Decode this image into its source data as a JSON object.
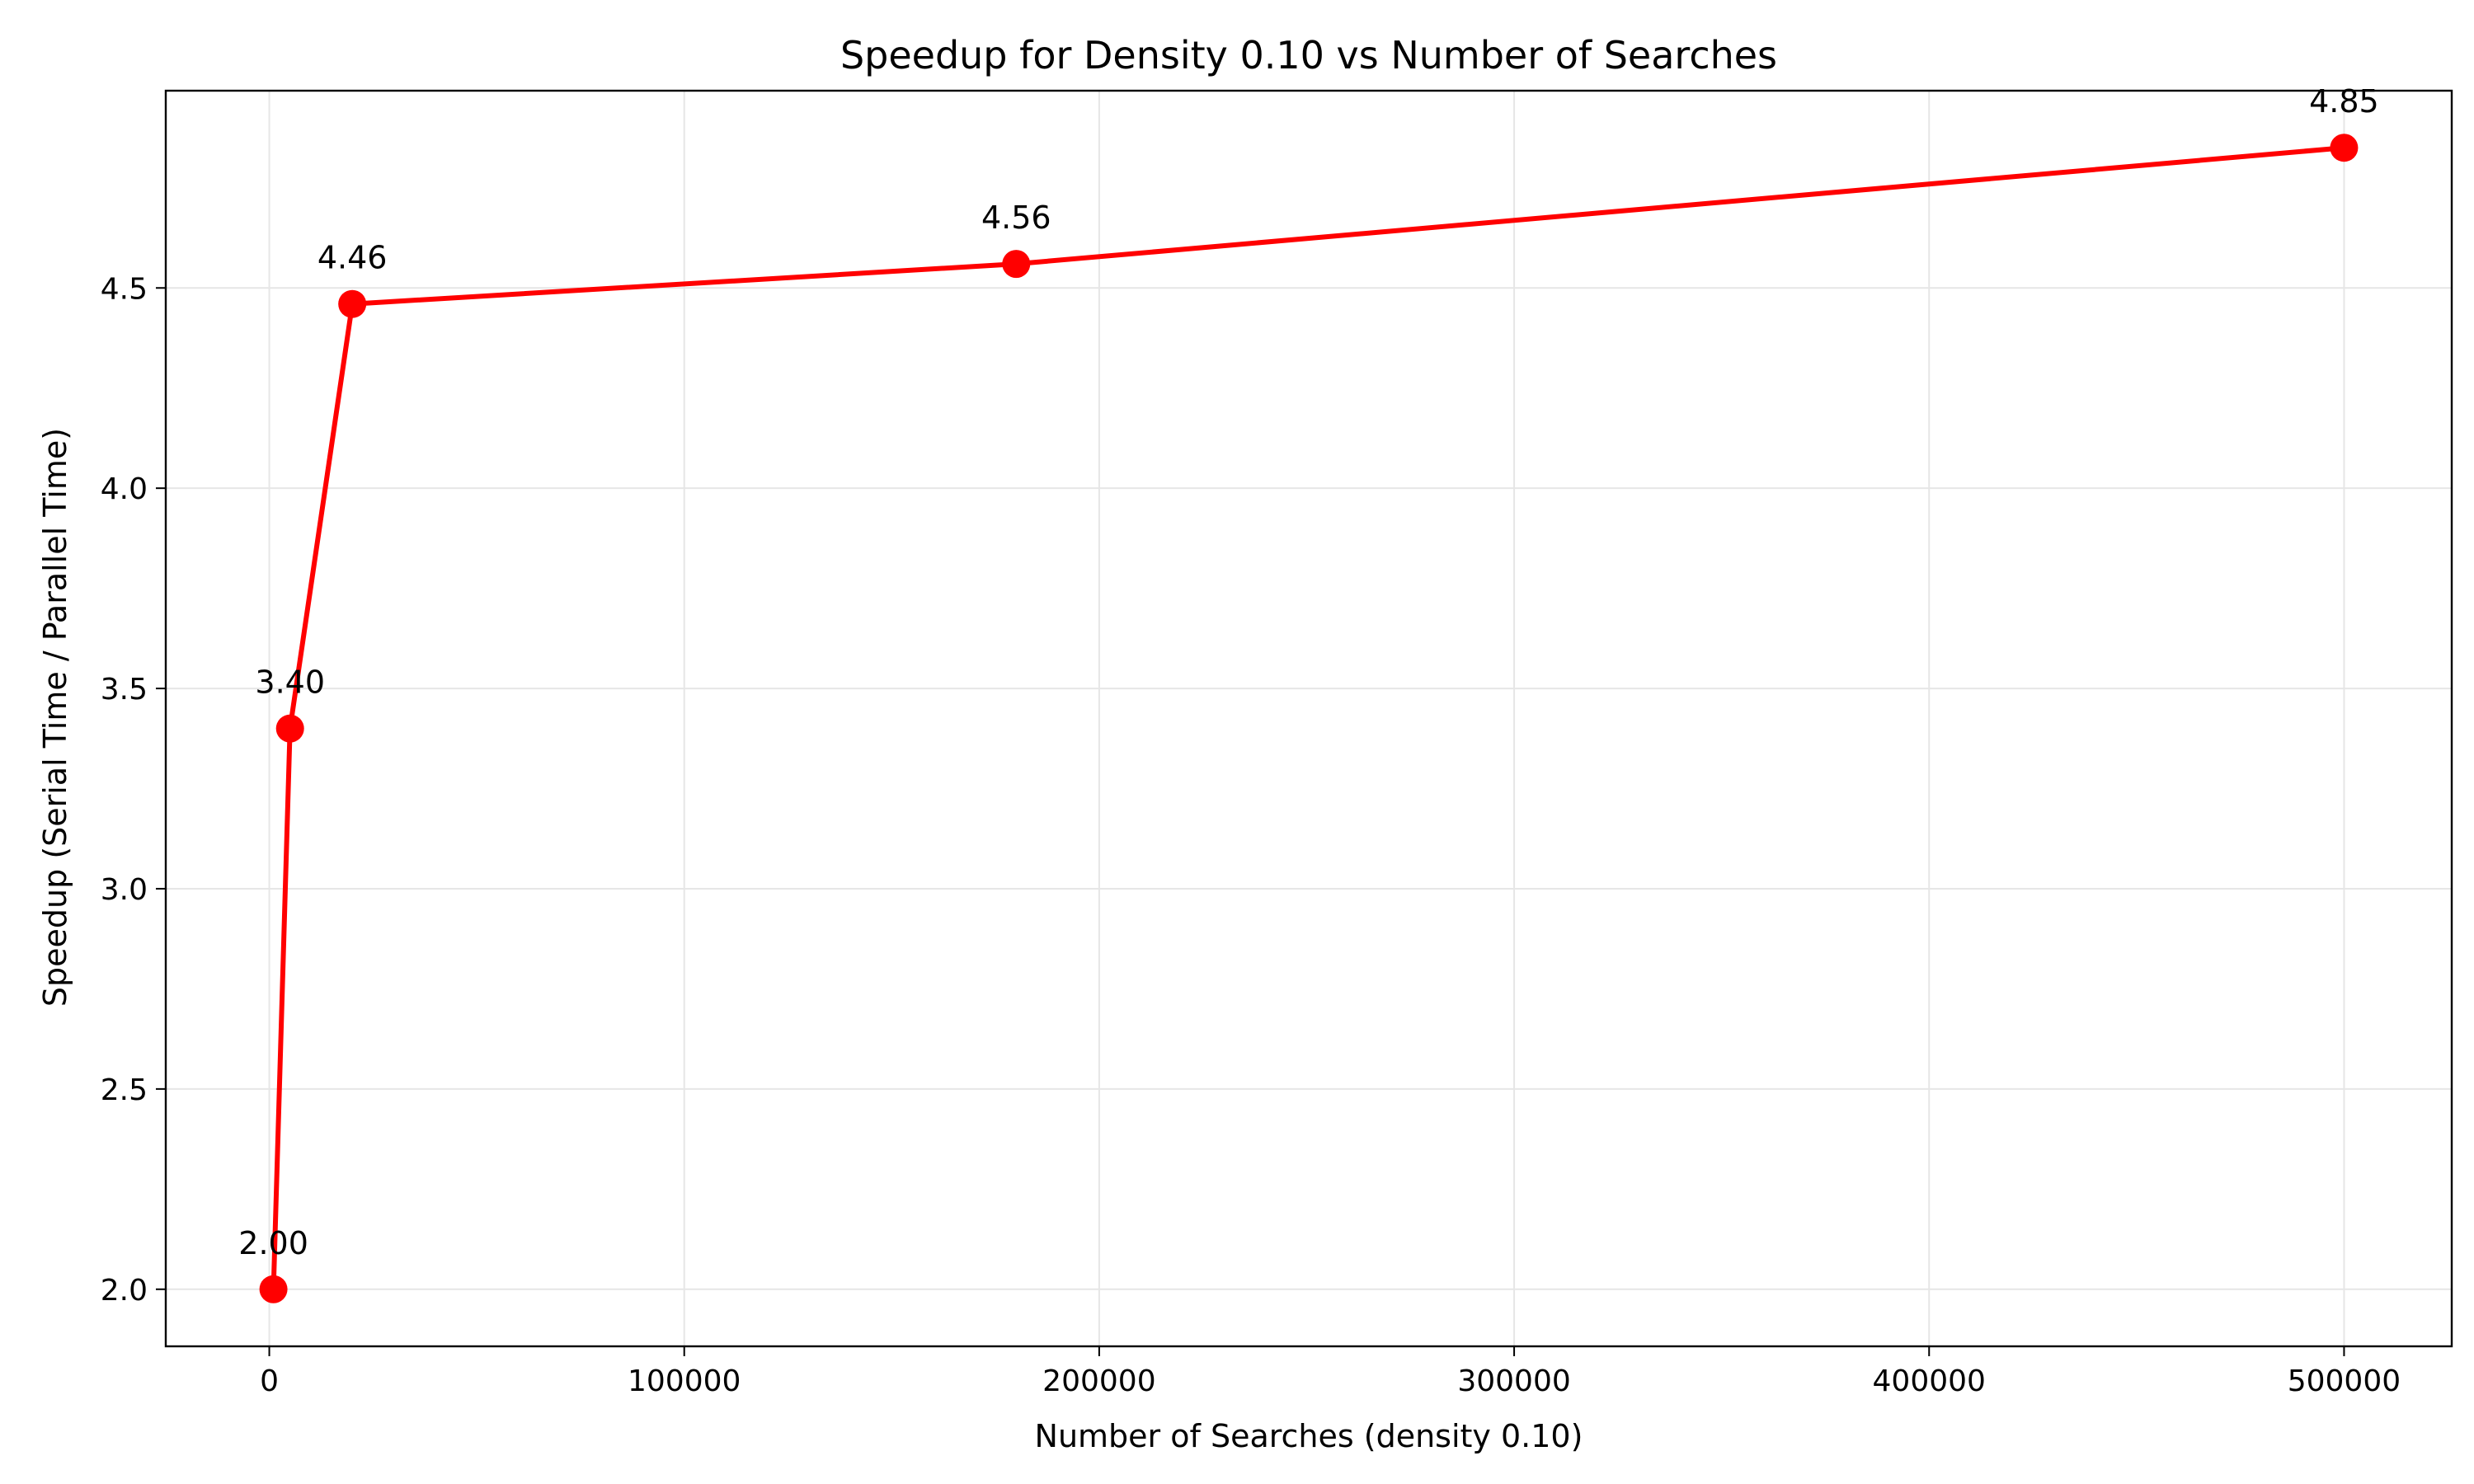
{
  "chart_data": {
    "type": "line",
    "title": "Speedup for Density 0.10 vs Number of Searches",
    "xlabel": "Number of Searches (density 0.10)",
    "ylabel": "Speedup (Serial Time / Parallel Time)",
    "x": [
      1000,
      5000,
      20000,
      180000,
      500000
    ],
    "series": [
      {
        "values": [
          2.0,
          3.4,
          4.46,
          4.56,
          4.85
        ],
        "labels": [
          "2.00",
          "3.40",
          "4.46",
          "4.56",
          "4.85"
        ],
        "color": "#ff0000",
        "marker": "circle"
      }
    ],
    "xlim": [
      -24950,
      525950
    ],
    "ylim": [
      1.8575,
      4.9925
    ],
    "xticks": [
      0,
      100000,
      200000,
      300000,
      400000,
      500000
    ],
    "xtick_labels": [
      "0",
      "100000",
      "200000",
      "300000",
      "400000",
      "500000"
    ],
    "yticks": [
      2.0,
      2.5,
      3.0,
      3.5,
      4.0,
      4.5
    ],
    "ytick_labels": [
      "2.0",
      "2.5",
      "3.0",
      "3.5",
      "4.0",
      "4.5"
    ],
    "grid": true,
    "grid_color": "#e6e6e6",
    "axis_color": "#000000"
  }
}
